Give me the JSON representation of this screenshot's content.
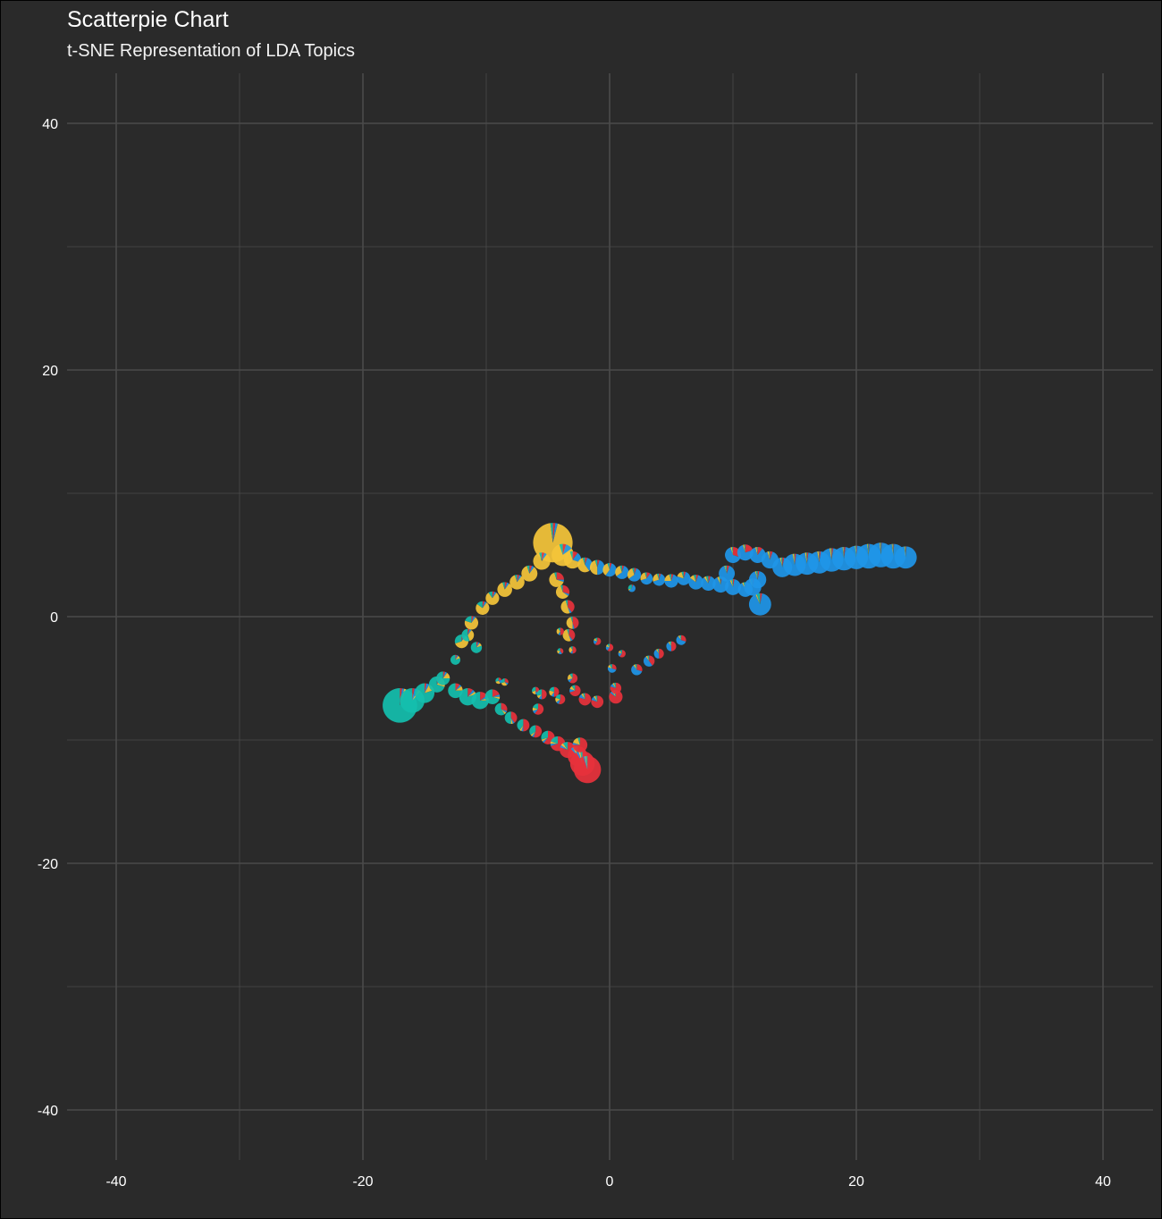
{
  "chart_data": {
    "type": "scatter",
    "subtype": "scatterpie",
    "title": "Scatterpie Chart",
    "subtitle": "t-SNE Representation of LDA Topics",
    "xlabel": "",
    "ylabel": "",
    "xlim": [
      -44,
      44
    ],
    "ylim": [
      -44,
      44
    ],
    "xticks": [
      -40,
      -20,
      0,
      20,
      40
    ],
    "yticks": [
      40,
      20,
      0,
      -20,
      -40
    ],
    "xtick_labels": [
      "-40",
      "-20",
      "0",
      "20",
      "40"
    ],
    "ytick_labels": [
      "40",
      "20",
      "0",
      "-20",
      "-40"
    ],
    "grid": true,
    "legend": "none",
    "background": "#2a2a2a",
    "grid_color": "#4a4a4a",
    "colors": {
      "topic1": "#e8323c",
      "topic2": "#1f96e9",
      "topic3": "#f5c63a",
      "topic4": "#14bfae"
    },
    "points": [
      {
        "x": -4.6,
        "y": 6.0,
        "r": 1.6,
        "p": [
          0.02,
          0.02,
          0.94,
          0.02
        ]
      },
      {
        "x": -3.8,
        "y": 5.0,
        "r": 0.9,
        "p": [
          0.05,
          0.1,
          0.8,
          0.05
        ]
      },
      {
        "x": -3.0,
        "y": 4.6,
        "r": 0.7,
        "p": [
          0.1,
          0.2,
          0.65,
          0.05
        ]
      },
      {
        "x": -2.0,
        "y": 4.2,
        "r": 0.6,
        "p": [
          0.05,
          0.35,
          0.55,
          0.05
        ]
      },
      {
        "x": -1.0,
        "y": 4.0,
        "r": 0.6,
        "p": [
          0.05,
          0.45,
          0.45,
          0.05
        ]
      },
      {
        "x": 0.0,
        "y": 3.8,
        "r": 0.55,
        "p": [
          0.05,
          0.55,
          0.35,
          0.05
        ]
      },
      {
        "x": 1.0,
        "y": 3.6,
        "r": 0.55,
        "p": [
          0.05,
          0.6,
          0.3,
          0.05
        ]
      },
      {
        "x": 2.0,
        "y": 3.4,
        "r": 0.55,
        "p": [
          0.05,
          0.6,
          0.3,
          0.05
        ]
      },
      {
        "x": 3.0,
        "y": 3.1,
        "r": 0.5,
        "p": [
          0.1,
          0.6,
          0.25,
          0.05
        ]
      },
      {
        "x": 4.0,
        "y": 3.0,
        "r": 0.5,
        "p": [
          0.05,
          0.65,
          0.25,
          0.05
        ]
      },
      {
        "x": 5.0,
        "y": 2.9,
        "r": 0.55,
        "p": [
          0.05,
          0.7,
          0.2,
          0.05
        ]
      },
      {
        "x": 6.0,
        "y": 3.1,
        "r": 0.55,
        "p": [
          0.05,
          0.75,
          0.15,
          0.05
        ]
      },
      {
        "x": 7.0,
        "y": 2.8,
        "r": 0.6,
        "p": [
          0.05,
          0.8,
          0.1,
          0.05
        ]
      },
      {
        "x": 8.0,
        "y": 2.7,
        "r": 0.6,
        "p": [
          0.05,
          0.85,
          0.05,
          0.05
        ]
      },
      {
        "x": 9.0,
        "y": 2.6,
        "r": 0.65,
        "p": [
          0.03,
          0.9,
          0.04,
          0.03
        ]
      },
      {
        "x": 10.0,
        "y": 2.4,
        "r": 0.65,
        "p": [
          0.03,
          0.9,
          0.04,
          0.03
        ]
      },
      {
        "x": 11.0,
        "y": 2.2,
        "r": 0.6,
        "p": [
          0.03,
          0.9,
          0.03,
          0.04
        ]
      },
      {
        "x": 12.2,
        "y": 1.0,
        "r": 0.9,
        "p": [
          0.03,
          0.9,
          0.02,
          0.05
        ]
      },
      {
        "x": 11.6,
        "y": 2.4,
        "r": 0.7,
        "p": [
          0.03,
          0.9,
          0.03,
          0.04
        ]
      },
      {
        "x": 12.0,
        "y": 3.0,
        "r": 0.7,
        "p": [
          0.03,
          0.92,
          0.02,
          0.03
        ]
      },
      {
        "x": 9.5,
        "y": 3.5,
        "r": 0.65,
        "p": [
          0.05,
          0.9,
          0.02,
          0.03
        ]
      },
      {
        "x": 10.0,
        "y": 5.0,
        "r": 0.65,
        "p": [
          0.3,
          0.65,
          0.03,
          0.02
        ]
      },
      {
        "x": 11.0,
        "y": 5.2,
        "r": 0.65,
        "p": [
          0.2,
          0.75,
          0.03,
          0.02
        ]
      },
      {
        "x": 12.0,
        "y": 5.0,
        "r": 0.65,
        "p": [
          0.1,
          0.85,
          0.03,
          0.02
        ]
      },
      {
        "x": 13.0,
        "y": 4.6,
        "r": 0.7,
        "p": [
          0.05,
          0.9,
          0.03,
          0.02
        ]
      },
      {
        "x": 14.0,
        "y": 4.0,
        "r": 0.8,
        "p": [
          0.03,
          0.93,
          0.02,
          0.02
        ]
      },
      {
        "x": 15.0,
        "y": 4.2,
        "r": 0.9,
        "p": [
          0.02,
          0.95,
          0.02,
          0.01
        ]
      },
      {
        "x": 16.0,
        "y": 4.3,
        "r": 0.9,
        "p": [
          0.02,
          0.95,
          0.02,
          0.01
        ]
      },
      {
        "x": 17.0,
        "y": 4.4,
        "r": 0.9,
        "p": [
          0.02,
          0.95,
          0.02,
          0.01
        ]
      },
      {
        "x": 18.0,
        "y": 4.6,
        "r": 0.95,
        "p": [
          0.02,
          0.95,
          0.02,
          0.01
        ]
      },
      {
        "x": 19.0,
        "y": 4.7,
        "r": 0.95,
        "p": [
          0.02,
          0.96,
          0.01,
          0.01
        ]
      },
      {
        "x": 20.0,
        "y": 4.8,
        "r": 0.95,
        "p": [
          0.01,
          0.97,
          0.01,
          0.01
        ]
      },
      {
        "x": 21.0,
        "y": 4.9,
        "r": 1.0,
        "p": [
          0.01,
          0.97,
          0.01,
          0.01
        ]
      },
      {
        "x": 22.0,
        "y": 5.0,
        "r": 1.0,
        "p": [
          0.01,
          0.97,
          0.01,
          0.01
        ]
      },
      {
        "x": 23.0,
        "y": 4.9,
        "r": 1.0,
        "p": [
          0.01,
          0.97,
          0.01,
          0.01
        ]
      },
      {
        "x": 24.0,
        "y": 4.8,
        "r": 0.9,
        "p": [
          0.01,
          0.97,
          0.01,
          0.01
        ]
      },
      {
        "x": -5.5,
        "y": 4.5,
        "r": 0.7,
        "p": [
          0.05,
          0.05,
          0.85,
          0.05
        ]
      },
      {
        "x": -6.5,
        "y": 3.5,
        "r": 0.65,
        "p": [
          0.05,
          0.05,
          0.85,
          0.05
        ]
      },
      {
        "x": -7.5,
        "y": 2.8,
        "r": 0.6,
        "p": [
          0.05,
          0.05,
          0.85,
          0.05
        ]
      },
      {
        "x": -8.5,
        "y": 2.2,
        "r": 0.6,
        "p": [
          0.05,
          0.05,
          0.85,
          0.05
        ]
      },
      {
        "x": -9.5,
        "y": 1.5,
        "r": 0.55,
        "p": [
          0.05,
          0.05,
          0.8,
          0.1
        ]
      },
      {
        "x": -10.3,
        "y": 0.7,
        "r": 0.55,
        "p": [
          0.05,
          0.05,
          0.75,
          0.15
        ]
      },
      {
        "x": -11.2,
        "y": -0.5,
        "r": 0.55,
        "p": [
          0.05,
          0.05,
          0.7,
          0.2
        ]
      },
      {
        "x": -12.0,
        "y": -2.0,
        "r": 0.55,
        "p": [
          0.05,
          0.05,
          0.6,
          0.3
        ]
      },
      {
        "x": -11.5,
        "y": -1.5,
        "r": 0.5,
        "p": [
          0.05,
          0.05,
          0.35,
          0.55
        ]
      },
      {
        "x": -10.8,
        "y": -2.5,
        "r": 0.45,
        "p": [
          0.05,
          0.05,
          0.1,
          0.8
        ]
      },
      {
        "x": -4.3,
        "y": 3.0,
        "r": 0.6,
        "p": [
          0.25,
          0.05,
          0.65,
          0.05
        ]
      },
      {
        "x": -3.8,
        "y": 2.0,
        "r": 0.55,
        "p": [
          0.3,
          0.05,
          0.6,
          0.05
        ]
      },
      {
        "x": -3.4,
        "y": 0.8,
        "r": 0.55,
        "p": [
          0.4,
          0.05,
          0.5,
          0.05
        ]
      },
      {
        "x": -3.0,
        "y": -0.5,
        "r": 0.5,
        "p": [
          0.45,
          0.05,
          0.45,
          0.05
        ]
      },
      {
        "x": -3.3,
        "y": -1.5,
        "r": 0.5,
        "p": [
          0.4,
          0.05,
          0.5,
          0.05
        ]
      },
      {
        "x": -3.0,
        "y": -2.7,
        "r": 0.3,
        "p": [
          0.5,
          0.1,
          0.3,
          0.1
        ]
      },
      {
        "x": -17.0,
        "y": -7.2,
        "r": 1.4,
        "p": [
          0.02,
          0.02,
          0.02,
          0.94
        ]
      },
      {
        "x": -16.0,
        "y": -6.8,
        "r": 1.0,
        "p": [
          0.03,
          0.05,
          0.04,
          0.88
        ]
      },
      {
        "x": -15.0,
        "y": -6.2,
        "r": 0.8,
        "p": [
          0.03,
          0.05,
          0.12,
          0.8
        ]
      },
      {
        "x": -14.0,
        "y": -5.5,
        "r": 0.65,
        "p": [
          0.05,
          0.05,
          0.2,
          0.7
        ]
      },
      {
        "x": -13.5,
        "y": -5.0,
        "r": 0.55,
        "p": [
          0.05,
          0.05,
          0.15,
          0.75
        ]
      },
      {
        "x": -12.5,
        "y": -6.0,
        "r": 0.6,
        "p": [
          0.1,
          0.05,
          0.1,
          0.75
        ]
      },
      {
        "x": -11.5,
        "y": -6.5,
        "r": 0.7,
        "p": [
          0.1,
          0.05,
          0.05,
          0.8
        ]
      },
      {
        "x": -10.5,
        "y": -6.8,
        "r": 0.7,
        "p": [
          0.15,
          0.05,
          0.05,
          0.75
        ]
      },
      {
        "x": -9.5,
        "y": -6.5,
        "r": 0.6,
        "p": [
          0.2,
          0.05,
          0.05,
          0.7
        ]
      },
      {
        "x": -8.8,
        "y": -7.5,
        "r": 0.5,
        "p": [
          0.3,
          0.05,
          0.05,
          0.6
        ]
      },
      {
        "x": -8.0,
        "y": -8.2,
        "r": 0.5,
        "p": [
          0.4,
          0.05,
          0.05,
          0.5
        ]
      },
      {
        "x": -7.0,
        "y": -8.8,
        "r": 0.5,
        "p": [
          0.5,
          0.05,
          0.05,
          0.4
        ]
      },
      {
        "x": -6.0,
        "y": -9.3,
        "r": 0.5,
        "p": [
          0.55,
          0.05,
          0.05,
          0.35
        ]
      },
      {
        "x": -5.0,
        "y": -9.8,
        "r": 0.55,
        "p": [
          0.6,
          0.05,
          0.05,
          0.3
        ]
      },
      {
        "x": -4.2,
        "y": -10.3,
        "r": 0.6,
        "p": [
          0.7,
          0.05,
          0.05,
          0.2
        ]
      },
      {
        "x": -3.4,
        "y": -10.8,
        "r": 0.65,
        "p": [
          0.8,
          0.05,
          0.05,
          0.1
        ]
      },
      {
        "x": -2.6,
        "y": -11.3,
        "r": 0.8,
        "p": [
          0.88,
          0.04,
          0.04,
          0.04
        ]
      },
      {
        "x": -2.2,
        "y": -11.9,
        "r": 1.0,
        "p": [
          0.92,
          0.03,
          0.02,
          0.03
        ]
      },
      {
        "x": -1.8,
        "y": -12.4,
        "r": 1.1,
        "p": [
          0.95,
          0.02,
          0.01,
          0.02
        ]
      },
      {
        "x": -2.4,
        "y": -10.4,
        "r": 0.6,
        "p": [
          0.75,
          0.05,
          0.15,
          0.05
        ]
      },
      {
        "x": -12.5,
        "y": -3.5,
        "r": 0.4,
        "p": [
          0.05,
          0.05,
          0.1,
          0.8
        ]
      },
      {
        "x": -8.5,
        "y": -5.3,
        "r": 0.3,
        "p": [
          0.3,
          0.1,
          0.3,
          0.3
        ]
      },
      {
        "x": -6.0,
        "y": -6.0,
        "r": 0.3,
        "p": [
          0.4,
          0.1,
          0.2,
          0.3
        ]
      },
      {
        "x": -5.5,
        "y": -6.3,
        "r": 0.4,
        "p": [
          0.5,
          0.1,
          0.1,
          0.3
        ]
      },
      {
        "x": -4.5,
        "y": -6.1,
        "r": 0.4,
        "p": [
          0.5,
          0.1,
          0.2,
          0.2
        ]
      },
      {
        "x": -4.0,
        "y": -6.7,
        "r": 0.4,
        "p": [
          0.55,
          0.1,
          0.15,
          0.2
        ]
      },
      {
        "x": -5.8,
        "y": -7.5,
        "r": 0.45,
        "p": [
          0.6,
          0.1,
          0.1,
          0.2
        ]
      },
      {
        "x": -3.0,
        "y": -5.0,
        "r": 0.4,
        "p": [
          0.6,
          0.1,
          0.2,
          0.1
        ]
      },
      {
        "x": -2.8,
        "y": -6.0,
        "r": 0.45,
        "p": [
          0.7,
          0.1,
          0.1,
          0.1
        ]
      },
      {
        "x": -2.0,
        "y": -6.7,
        "r": 0.5,
        "p": [
          0.8,
          0.1,
          0.05,
          0.05
        ]
      },
      {
        "x": -1.0,
        "y": -6.9,
        "r": 0.5,
        "p": [
          0.8,
          0.1,
          0.05,
          0.05
        ]
      },
      {
        "x": 0.5,
        "y": -6.5,
        "r": 0.55,
        "p": [
          0.85,
          0.05,
          0.05,
          0.05
        ]
      },
      {
        "x": 0.5,
        "y": -5.8,
        "r": 0.45,
        "p": [
          0.8,
          0.1,
          0.05,
          0.05
        ]
      },
      {
        "x": -1.0,
        "y": -2.0,
        "r": 0.3,
        "p": [
          0.6,
          0.2,
          0.1,
          0.1
        ]
      },
      {
        "x": 0.0,
        "y": -2.5,
        "r": 0.3,
        "p": [
          0.6,
          0.2,
          0.1,
          0.1
        ]
      },
      {
        "x": 1.0,
        "y": -3.0,
        "r": 0.3,
        "p": [
          0.6,
          0.2,
          0.1,
          0.1
        ]
      },
      {
        "x": 0.2,
        "y": -4.2,
        "r": 0.35,
        "p": [
          0.3,
          0.5,
          0.1,
          0.1
        ]
      },
      {
        "x": 2.2,
        "y": -4.3,
        "r": 0.45,
        "p": [
          0.3,
          0.6,
          0.05,
          0.05
        ]
      },
      {
        "x": 3.2,
        "y": -3.6,
        "r": 0.45,
        "p": [
          0.4,
          0.5,
          0.05,
          0.05
        ]
      },
      {
        "x": 4.0,
        "y": -3.0,
        "r": 0.4,
        "p": [
          0.5,
          0.4,
          0.05,
          0.05
        ]
      },
      {
        "x": 5.0,
        "y": -2.4,
        "r": 0.4,
        "p": [
          0.5,
          0.4,
          0.05,
          0.05
        ]
      },
      {
        "x": 5.8,
        "y": -1.9,
        "r": 0.4,
        "p": [
          0.3,
          0.6,
          0.05,
          0.05
        ]
      },
      {
        "x": 1.8,
        "y": 2.3,
        "r": 0.3,
        "p": [
          0.05,
          0.6,
          0.05,
          0.3
        ]
      },
      {
        "x": -4.0,
        "y": -1.2,
        "r": 0.3,
        "p": [
          0.5,
          0.1,
          0.3,
          0.1
        ]
      },
      {
        "x": -4.0,
        "y": -2.8,
        "r": 0.25,
        "p": [
          0.4,
          0.2,
          0.2,
          0.2
        ]
      },
      {
        "x": -9.0,
        "y": -5.2,
        "r": 0.25,
        "p": [
          0.2,
          0.2,
          0.3,
          0.3
        ]
      }
    ]
  }
}
